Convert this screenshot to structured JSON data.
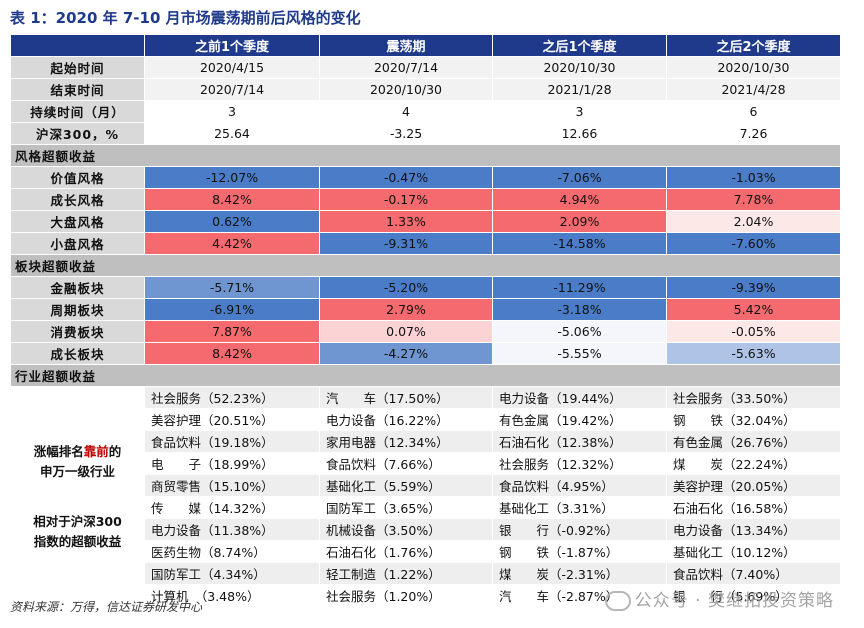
{
  "title": "表 1：2020 年 7-10 月市场震荡期前后风格的变化",
  "headers": [
    "之前1个季度",
    "震荡期",
    "之后1个季度",
    "之后2个季度"
  ],
  "info_rows": [
    {
      "label": "起始时间",
      "values": [
        "2020/4/15",
        "2020/7/14",
        "2020/10/30",
        "2020/10/30"
      ]
    },
    {
      "label": "结束时间",
      "values": [
        "2020/7/14",
        "2020/10/30",
        "2021/1/28",
        "2021/4/28"
      ]
    },
    {
      "label": "持续时间（月）",
      "values": [
        "3",
        "4",
        "3",
        "6"
      ]
    },
    {
      "label": "沪深300，%",
      "values": [
        "25.64",
        "-3.25",
        "12.66",
        "7.26"
      ]
    }
  ],
  "sections": {
    "style": "风格超额收益",
    "sector": "板块超额收益",
    "industry": "行业超额收益"
  },
  "colors": {
    "header": "#1f3a8a",
    "neg_strong": "#4a7cc7",
    "neg_mid": "#6f96d1",
    "neg_light": "#aec3e6",
    "neg_faint": "#f4f6fb",
    "pos_strong": "#f46a6e",
    "pos_mid": "#f48a8d",
    "pos_light": "#fbd3d4",
    "pos_faint": "#fde8e8"
  },
  "chart_data": {
    "type": "table",
    "title": "表 1：2020 年 7-10 月市场震荡期前后风格的变化",
    "columns": [
      "之前1个季度",
      "震荡期",
      "之后1个季度",
      "之后2个季度"
    ],
    "style_rows": [
      {
        "label": "价值风格",
        "values": [
          "-12.07%",
          "-0.47%",
          "-7.06%",
          "-1.03%"
        ],
        "shades": [
          "neg_strong",
          "neg_strong",
          "neg_strong",
          "neg_strong"
        ]
      },
      {
        "label": "成长风格",
        "values": [
          "8.42%",
          "-0.17%",
          "4.94%",
          "7.78%"
        ],
        "shades": [
          "pos_strong",
          "pos_strong",
          "pos_strong",
          "pos_strong"
        ]
      },
      {
        "label": "大盘风格",
        "values": [
          "0.62%",
          "1.33%",
          "2.09%",
          "2.04%"
        ],
        "shades": [
          "neg_strong",
          "pos_strong",
          "pos_strong",
          "pos_faint"
        ]
      },
      {
        "label": "小盘风格",
        "values": [
          "4.42%",
          "-9.31%",
          "-14.58%",
          "-7.60%"
        ],
        "shades": [
          "pos_strong",
          "neg_strong",
          "neg_strong",
          "neg_strong"
        ]
      }
    ],
    "sector_rows": [
      {
        "label": "金融板块",
        "values": [
          "-5.71%",
          "-5.20%",
          "-11.29%",
          "-9.39%"
        ],
        "shades": [
          "neg_mid",
          "neg_strong",
          "neg_strong",
          "neg_strong"
        ]
      },
      {
        "label": "周期板块",
        "values": [
          "-6.91%",
          "2.79%",
          "-3.18%",
          "5.42%"
        ],
        "shades": [
          "neg_strong",
          "pos_strong",
          "neg_strong",
          "pos_strong"
        ]
      },
      {
        "label": "消费板块",
        "values": [
          "7.87%",
          "0.07%",
          "-5.06%",
          "-0.05%"
        ],
        "shades": [
          "pos_strong",
          "pos_light",
          "neg_faint",
          "pos_faint"
        ]
      },
      {
        "label": "成长板块",
        "values": [
          "8.42%",
          "-4.27%",
          "-5.55%",
          "-5.63%"
        ],
        "shades": [
          "pos_strong",
          "neg_mid",
          "neg_faint",
          "neg_light"
        ]
      }
    ],
    "industry_label": {
      "line1a": "涨幅排名",
      "line1b": "靠前",
      "line1c": "的",
      "line2": "申万一级行业",
      "line3": "相对于沪深300",
      "line4": "指数的超额收益"
    },
    "industry_rows": [
      [
        "社会服务（52.23%）",
        "汽　　车（17.50%）",
        "电力设备（19.44%）",
        "社会服务（33.50%）"
      ],
      [
        "美容护理（20.51%）",
        "电力设备（16.22%）",
        "有色金属（19.42%）",
        "钢　　铁（32.04%）"
      ],
      [
        "食品饮料（19.18%）",
        "家用电器（12.34%）",
        "石油石化（12.38%）",
        "有色金属（26.76%）"
      ],
      [
        "电　　子（18.99%）",
        "食品饮料（7.66%）",
        "社会服务（12.32%）",
        "煤　　炭（22.24%）"
      ],
      [
        "商贸零售（15.10%）",
        "基础化工（5.59%）",
        "食品饮料（4.95%）",
        "美容护理（20.05%）"
      ],
      [
        "传　　媒（14.32%）",
        "国防军工（3.65%）",
        "基础化工（3.31%）",
        "石油石化（16.58%）"
      ],
      [
        "电力设备（11.38%）",
        "机械设备（3.50%）",
        "银　　行（-0.92%）",
        "电力设备（13.34%）"
      ],
      [
        "医药生物（8.74%）",
        "石油石化（1.76%）",
        "钢　　铁（-1.87%）",
        "基础化工（10.12%）"
      ],
      [
        "国防军工（4.34%）",
        "轻工制造（1.22%）",
        "煤　　炭（-2.31%）",
        "食品饮料（7.40%）"
      ],
      [
        "计算机　（3.48%）",
        "社会服务（1.20%）",
        "汽　　车（-2.87%）",
        "银　　行（5.69%）"
      ]
    ]
  },
  "source": "资料来源：万得，信达证券研发中心",
  "watermark": "公众号 · 樊继拓投资策略"
}
